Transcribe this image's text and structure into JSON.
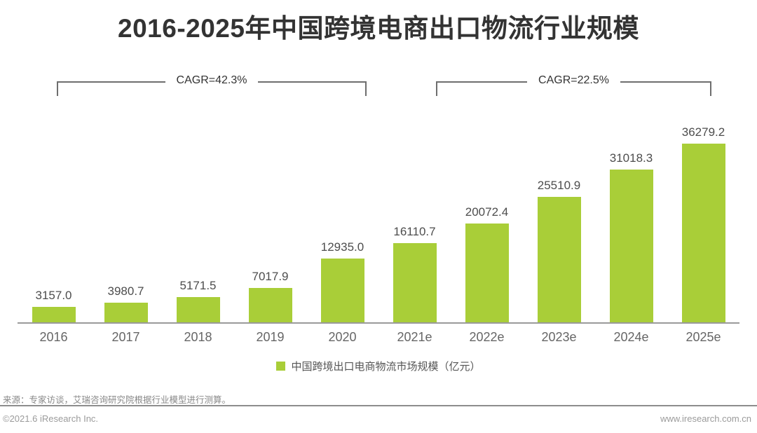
{
  "title": "2016-2025年中国跨境电商出口物流行业规模",
  "cagr_brackets": [
    {
      "label": "CAGR=42.3%"
    },
    {
      "label": "CAGR=22.5%"
    }
  ],
  "chart_data": {
    "type": "bar",
    "title": "2016-2025年中国跨境电商出口物流行业规模",
    "categories": [
      "2016",
      "2017",
      "2018",
      "2019",
      "2020",
      "2021e",
      "2022e",
      "2023e",
      "2024e",
      "2025e"
    ],
    "values": [
      3157.0,
      3980.7,
      5171.5,
      7017.9,
      12935.0,
      16110.7,
      20072.4,
      25510.9,
      31018.3,
      36279.2
    ],
    "value_labels": [
      "3157.0",
      "3980.7",
      "5171.5",
      "7017.9",
      "12935.0",
      "16110.7",
      "20072.4",
      "25510.9",
      "31018.3",
      "36279.2"
    ],
    "annotations": [
      "CAGR=42.3% (2016-2020)",
      "CAGR=22.5% (2021e-2025e)"
    ],
    "legend": "中国跨境出口电商物流市场规模（亿元）",
    "bar_color": "#a9ce38",
    "ylim": [
      0,
      36279.2
    ],
    "grid": false,
    "legend_position": "bottom-center"
  },
  "legend": {
    "label": "中国跨境出口电商物流市场规模（亿元）",
    "color": "#a9ce38"
  },
  "footer": {
    "source": "来源：专家访谈，艾瑞咨询研究院根据行业模型进行测算。",
    "copyright": "©2021.6 iResearch Inc.",
    "website": "www.iresearch.com.cn"
  }
}
